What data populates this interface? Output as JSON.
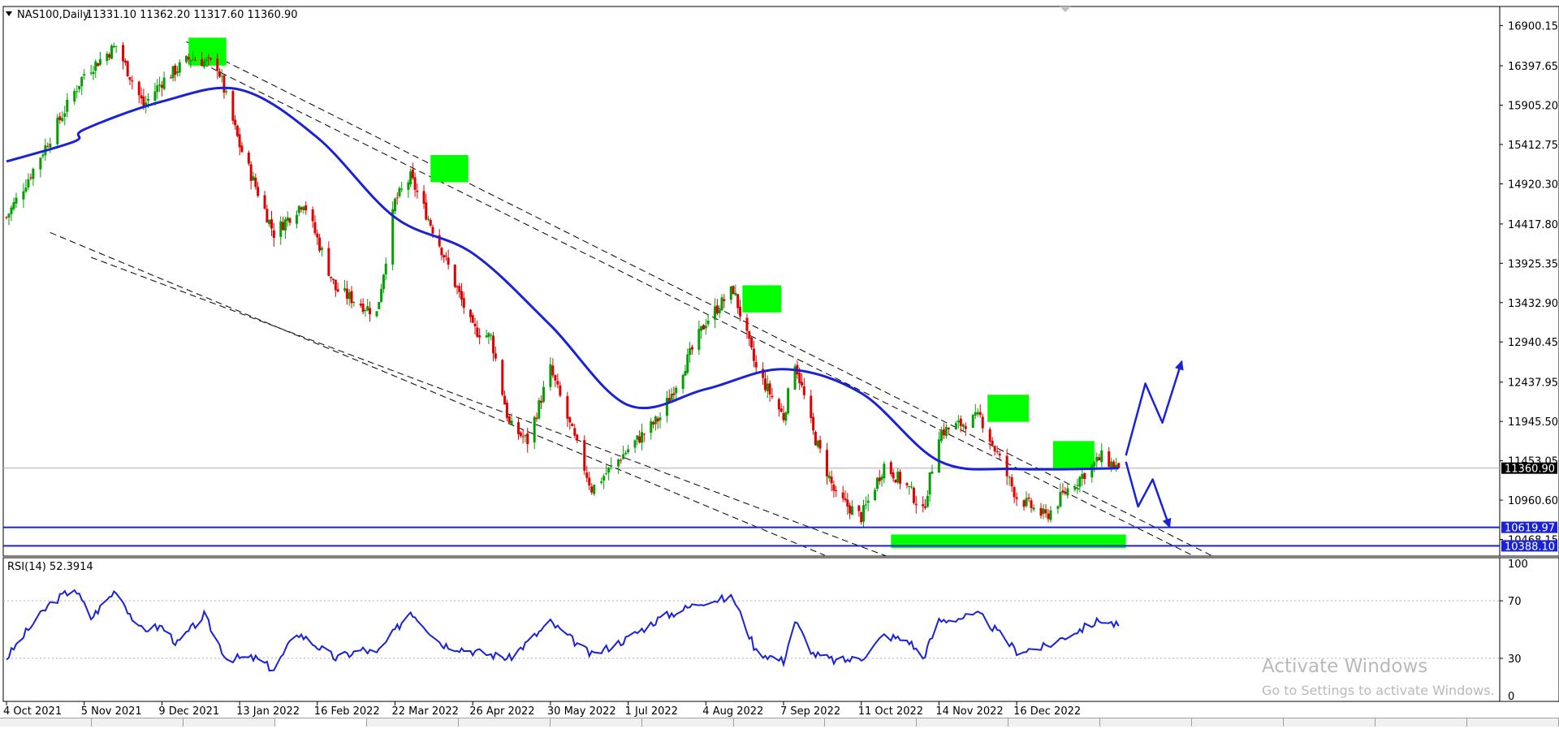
{
  "chart_data": [
    {
      "type": "candlestick",
      "symbol_header": "NAS100,Daily",
      "ohlc_header": "11331.10 11362.20 11317.60 11360.90",
      "current_price_label": "11360.90",
      "ylim": [
        10260,
        17140
      ],
      "y_ticks": [
        "16900.15",
        "16397.65",
        "15905.20",
        "15412.75",
        "14920.30",
        "14417.80",
        "13925.35",
        "13432.90",
        "12940.45",
        "12437.95",
        "11945.50",
        "11453.05",
        "10960.60",
        "10468.15"
      ],
      "x_ticks": [
        "4 Oct 2021",
        "5 Nov 2021",
        "9 Dec 2021",
        "13 Jan 2022",
        "16 Feb 2022",
        "22 Mar 2022",
        "26 Apr 2022",
        "30 May 2022",
        "1 Jul 2022",
        "4 Aug 2022",
        "7 Sep 2022",
        "11 Oct 2022",
        "14 Nov 2022",
        "16 Dec 2022"
      ],
      "close_path": [
        [
          "4 Oct 2021",
          14500
        ],
        [
          "15 Oct 2021",
          15100
        ],
        [
          "5 Nov 2021",
          16300
        ],
        [
          "19 Nov 2021",
          16650
        ],
        [
          "1 Dec 2021",
          15900
        ],
        [
          "9 Dec 2021",
          16200
        ],
        [
          "22 Dec 2021",
          16500
        ],
        [
          "3 Jan 2022",
          16400
        ],
        [
          "13 Jan 2022",
          15400
        ],
        [
          "28 Jan 2022",
          14300
        ],
        [
          "10 Feb 2022",
          14700
        ],
        [
          "24 Feb 2022",
          13600
        ],
        [
          "8 Mar 2022",
          13400
        ],
        [
          "14 Mar 2022",
          13300
        ],
        [
          "22 Mar 2022",
          14700
        ],
        [
          "29 Mar 2022",
          15000
        ],
        [
          "12 Apr 2022",
          14100
        ],
        [
          "26 Apr 2022",
          13100
        ],
        [
          "4 May 2022",
          13000
        ],
        [
          "12 May 2022",
          11900
        ],
        [
          "20 May 2022",
          11700
        ],
        [
          "30 May 2022",
          12600
        ],
        [
          "16 Jun 2022",
          11100
        ],
        [
          "1 Jul 2022",
          11600
        ],
        [
          "15 Jul 2022",
          12000
        ],
        [
          "4 Aug 2022",
          13200
        ],
        [
          "16 Aug 2022",
          13600
        ],
        [
          "26 Aug 2022",
          12600
        ],
        [
          "7 Sep 2022",
          12000
        ],
        [
          "12 Sep 2022",
          12700
        ],
        [
          "20 Sep 2022",
          11800
        ],
        [
          "30 Sep 2022",
          11000
        ],
        [
          "11 Oct 2022",
          10750
        ],
        [
          "21 Oct 2022",
          11400
        ],
        [
          "1 Nov 2022",
          11100
        ],
        [
          "7 Nov 2022",
          10800
        ],
        [
          "14 Nov 2022",
          11800
        ],
        [
          "22 Nov 2022",
          11900
        ],
        [
          "1 Dec 2022",
          12000
        ],
        [
          "16 Dec 2022",
          11000
        ],
        [
          "28 Dec 2022",
          10750
        ],
        [
          "6 Jan 2023",
          11100
        ],
        [
          "20 Jan 2023",
          11500
        ],
        [
          "27 Jan 2023",
          11360.9
        ]
      ],
      "moving_average": [
        [
          "4 Oct 2021",
          15200
        ],
        [
          "1 Nov 2021",
          15450
        ],
        [
          "5 Nov 2021",
          15600
        ],
        [
          "9 Dec 2021",
          15950
        ],
        [
          "13 Jan 2022",
          16100
        ],
        [
          "16 Feb 2022",
          15500
        ],
        [
          "22 Mar 2022",
          14500
        ],
        [
          "26 Apr 2022",
          14050
        ],
        [
          "30 May 2022",
          13150
        ],
        [
          "1 Jul 2022",
          12150
        ],
        [
          "4 Aug 2022",
          12350
        ],
        [
          "7 Sep 2022",
          12600
        ],
        [
          "11 Oct 2022",
          12300
        ],
        [
          "14 Nov 2022",
          11450
        ],
        [
          "16 Dec 2022",
          11350
        ],
        [
          "27 Jan 2023",
          11360
        ]
      ],
      "horizontal_levels": [
        {
          "label": "10619.97",
          "value": 10619.97
        },
        {
          "label": "10388.10",
          "value": 10388.1
        }
      ],
      "channel_upper_lines": [
        {
          "from": [
            "20 Dec 2021",
            16700
          ],
          "to": [
            "6 Mar 2023",
            10270
          ]
        },
        {
          "from": [
            "27 Dec 2021",
            16430
          ],
          "to": [
            "27 Feb 2023",
            10260
          ]
        }
      ],
      "channel_lower_lines": [
        {
          "from": [
            "22 Oct 2021",
            14310
          ],
          "to": [
            "25 Sep 2022",
            10270
          ]
        },
        {
          "from": [
            "8 Nov 2021",
            14000
          ],
          "to": [
            "22 Oct 2022",
            10260
          ]
        }
      ],
      "highlight_boxes": [
        {
          "from": [
            "21 Dec 2021",
            16750
          ],
          "to": [
            "7 Jan 2022",
            16400
          ],
          "color": "#00ff00"
        },
        {
          "from": [
            "7 Apr 2022",
            15280
          ],
          "to": [
            "24 Apr 2022",
            14940
          ],
          "color": "#00ff00"
        },
        {
          "from": [
            "20 Aug 2022",
            13650
          ],
          "to": [
            "6 Sep 2022",
            13310
          ],
          "color": "#00ff00"
        },
        {
          "from": [
            "4 Dec 2022",
            12280
          ],
          "to": [
            "21 Dec 2022",
            11940
          ],
          "color": "#00ff00"
        },
        {
          "from": [
            "31 Dec 2022",
            11700
          ],
          "to": [
            "17 Jan 2023",
            11360
          ],
          "color": "#00ff00"
        },
        {
          "from": [
            "24 Oct 2022",
            10530
          ],
          "to": [
            "30 Jan 2023",
            10360
          ],
          "color": "#00ff00"
        }
      ],
      "projection_arrows": [
        [
          [
            "30 Jan 2023",
            11520
          ],
          [
            "7 Feb 2023",
            12420
          ],
          [
            "14 Feb 2023",
            11930
          ],
          [
            "22 Feb 2023",
            12700
          ]
        ],
        [
          [
            "30 Jan 2023",
            11440
          ],
          [
            "4 Feb 2023",
            10880
          ],
          [
            "10 Feb 2023",
            11220
          ],
          [
            "17 Feb 2023",
            10620
          ]
        ]
      ],
      "colors": {
        "bull": "#00a000",
        "bear": "#e00000",
        "ma": "#1a22d6",
        "level": "#1a22d6",
        "highlight": "#00ff00",
        "arrow": "#1a22d6",
        "price_tag_bg": "#000000",
        "level_tag_bg": "#1a22d6"
      }
    },
    {
      "type": "line",
      "indicator_label": "RSI(14) 52.3914",
      "ylim": [
        0,
        100
      ],
      "y_ticks": [
        "100",
        "70",
        "30",
        "0"
      ],
      "levels": [
        70,
        30
      ],
      "series": [
        {
          "values": [
            [
              "4 Oct 2021",
              30
            ],
            [
              "12 Oct 2021",
              48
            ],
            [
              "22 Oct 2021",
              68
            ],
            [
              "1 Nov 2021",
              79
            ],
            [
              "8 Nov 2021",
              58
            ],
            [
              "19 Nov 2021",
              78
            ],
            [
              "29 Nov 2021",
              50
            ],
            [
              "9 Dec 2021",
              52
            ],
            [
              "16 Dec 2021",
              40
            ],
            [
              "28 Dec 2021",
              60
            ],
            [
              "7 Jan 2022",
              30
            ],
            [
              "20 Jan 2022",
              30
            ],
            [
              "28 Jan 2022",
              22
            ],
            [
              "7 Feb 2022",
              48
            ],
            [
              "24 Feb 2022",
              30
            ],
            [
              "8 Mar 2022",
              36
            ],
            [
              "14 Mar 2022",
              33
            ],
            [
              "29 Mar 2022",
              63
            ],
            [
              "12 Apr 2022",
              40
            ],
            [
              "26 Apr 2022",
              35
            ],
            [
              "12 May 2022",
              30
            ],
            [
              "30 May 2022",
              55
            ],
            [
              "16 Jun 2022",
              32
            ],
            [
              "1 Jul 2022",
              44
            ],
            [
              "15 Jul 2022",
              58
            ],
            [
              "4 Aug 2022",
              70
            ],
            [
              "16 Aug 2022",
              72
            ],
            [
              "26 Aug 2022",
              35
            ],
            [
              "7 Sep 2022",
              28
            ],
            [
              "12 Sep 2022",
              56
            ],
            [
              "20 Sep 2022",
              33
            ],
            [
              "30 Sep 2022",
              28
            ],
            [
              "11 Oct 2022",
              30
            ],
            [
              "21 Oct 2022",
              46
            ],
            [
              "1 Nov 2022",
              42
            ],
            [
              "7 Nov 2022",
              30
            ],
            [
              "14 Nov 2022",
              56
            ],
            [
              "22 Nov 2022",
              58
            ],
            [
              "1 Dec 2022",
              60
            ],
            [
              "16 Dec 2022",
              35
            ],
            [
              "28 Dec 2022",
              38
            ],
            [
              "6 Jan 2023",
              46
            ],
            [
              "20 Jan 2023",
              57
            ],
            [
              "27 Jan 2023",
              52.39
            ]
          ]
        }
      ]
    }
  ],
  "overlay": {
    "watermark_title": "Activate Windows",
    "watermark_subtitle": "Go to Settings to activate Windows."
  }
}
